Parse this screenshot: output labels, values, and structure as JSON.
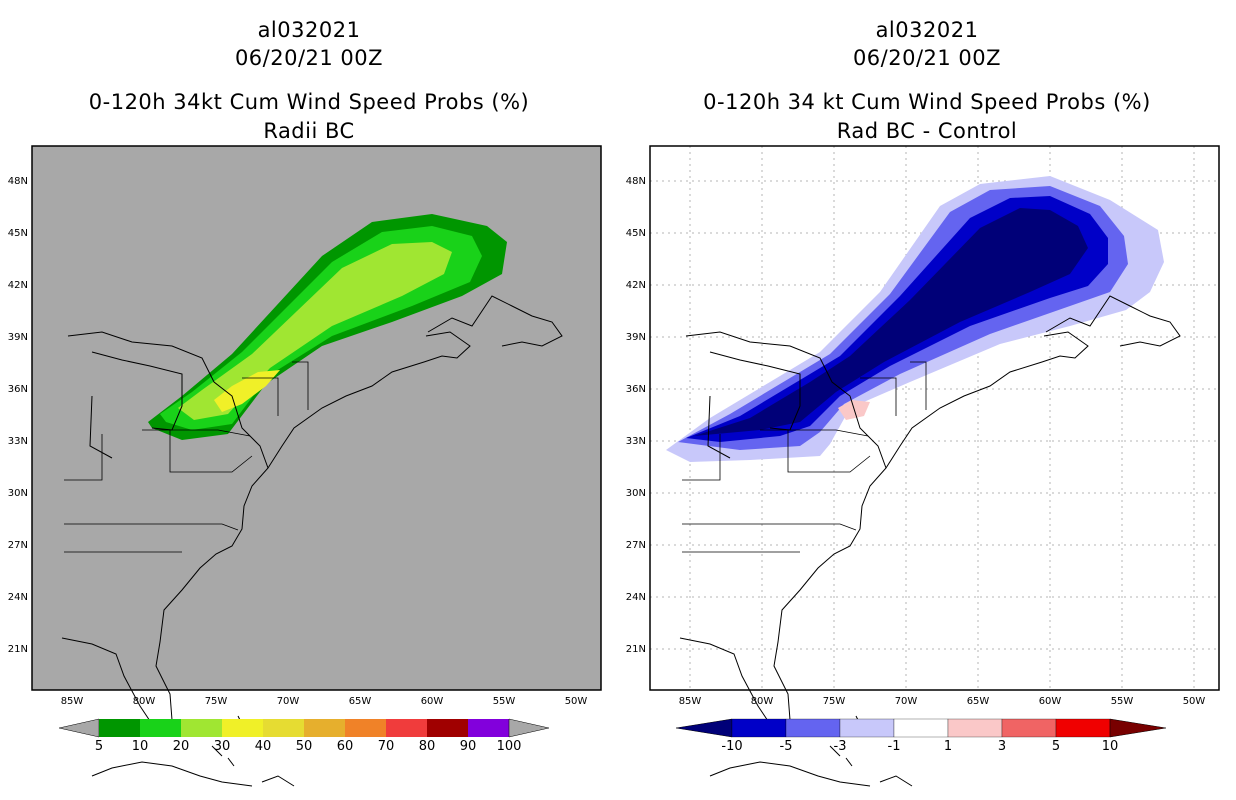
{
  "left_panel": {
    "storm_id": "al032021",
    "datetime": "06/20/21 00Z",
    "title": "0-120h 34kt Cum Wind Speed Probs (%)",
    "subtitle": "Radii BC",
    "background_color": "#a8a8a8",
    "colorbar": {
      "colors": [
        "#009600",
        "#19d219",
        "#a0e632",
        "#f0f028",
        "#e6dc32",
        "#e6af2d",
        "#f08228",
        "#f03c3c",
        "#a00000",
        "#8200dc"
      ],
      "labels": [
        "5",
        "10",
        "20",
        "30",
        "40",
        "50",
        "60",
        "70",
        "80",
        "90",
        "100"
      ]
    },
    "contours": [
      {
        "level": "5",
        "color": "#009600"
      },
      {
        "level": "10",
        "color": "#19d219"
      },
      {
        "level": "20",
        "color": "#a0e632"
      },
      {
        "level": "30",
        "color": "#f0f028"
      }
    ]
  },
  "right_panel": {
    "storm_id": "al032021",
    "datetime": "06/20/21 00Z",
    "title": "0-120h 34 kt Cum Wind Speed Probs (%)",
    "subtitle": "Rad BC - Control",
    "background_color": "#ffffff",
    "colorbar": {
      "colors": [
        "#0000c8",
        "#6464f0",
        "#c8c8fa",
        "#ffffff",
        "#fac8c8",
        "#f06464",
        "#f00000"
      ],
      "end_colors": [
        "#000078",
        "#780000"
      ],
      "labels": [
        "-10",
        "-5",
        "-3",
        "-1",
        "1",
        "3",
        "5",
        "10"
      ]
    },
    "contours": [
      {
        "level": "-1",
        "color": "#c8c8fa"
      },
      {
        "level": "-3",
        "color": "#6464f0"
      },
      {
        "level": "-5",
        "color": "#0000c8"
      },
      {
        "level": "-10",
        "color": "#000078"
      },
      {
        "level": "1",
        "color": "#fac8c8"
      }
    ]
  },
  "map_axes": {
    "lon_labels": [
      "85W",
      "80W",
      "75W",
      "70W",
      "65W",
      "60W",
      "55W",
      "50W"
    ],
    "lat_labels": [
      "48N",
      "45N",
      "42N",
      "39N",
      "36N",
      "33N",
      "30N",
      "27N",
      "24N",
      "21N"
    ]
  }
}
